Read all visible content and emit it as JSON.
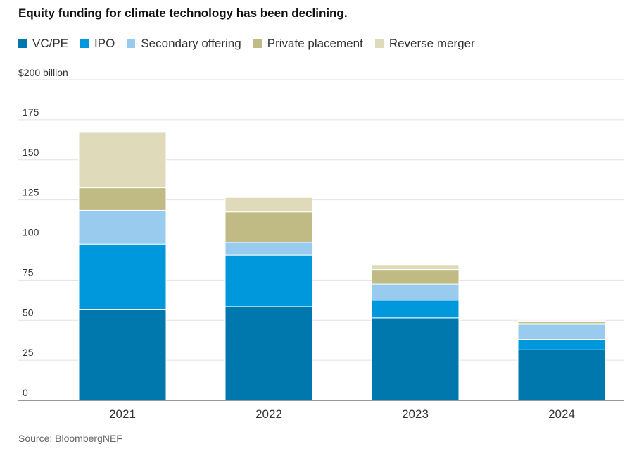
{
  "chart_data": {
    "type": "bar",
    "stacked": true,
    "title": "Equity funding for climate technology has been declining.",
    "ylabel": "$200 billion",
    "ylim": [
      0,
      200
    ],
    "yticks": [
      0,
      25,
      50,
      75,
      100,
      125,
      150,
      175
    ],
    "categories": [
      "2021",
      "2022",
      "2023",
      "2024"
    ],
    "series": [
      {
        "name": "VC/PE",
        "color": "#0077ad",
        "values": [
          56.5,
          58.5,
          51.5,
          31.5
        ]
      },
      {
        "name": "IPO",
        "color": "#0098dd",
        "values": [
          41,
          32,
          11,
          6.5
        ]
      },
      {
        "name": "Secondary offering",
        "color": "#98cbee",
        "values": [
          21,
          8,
          10,
          9.5
        ]
      },
      {
        "name": "Private placement",
        "color": "#c0bb84",
        "values": [
          14,
          19,
          9,
          1.5
        ]
      },
      {
        "name": "Reverse merger",
        "color": "#dedaba",
        "values": [
          35,
          9,
          3,
          1
        ]
      }
    ],
    "grid": true,
    "legend_position": "top-left",
    "source": "Source: BloombergNEF"
  }
}
